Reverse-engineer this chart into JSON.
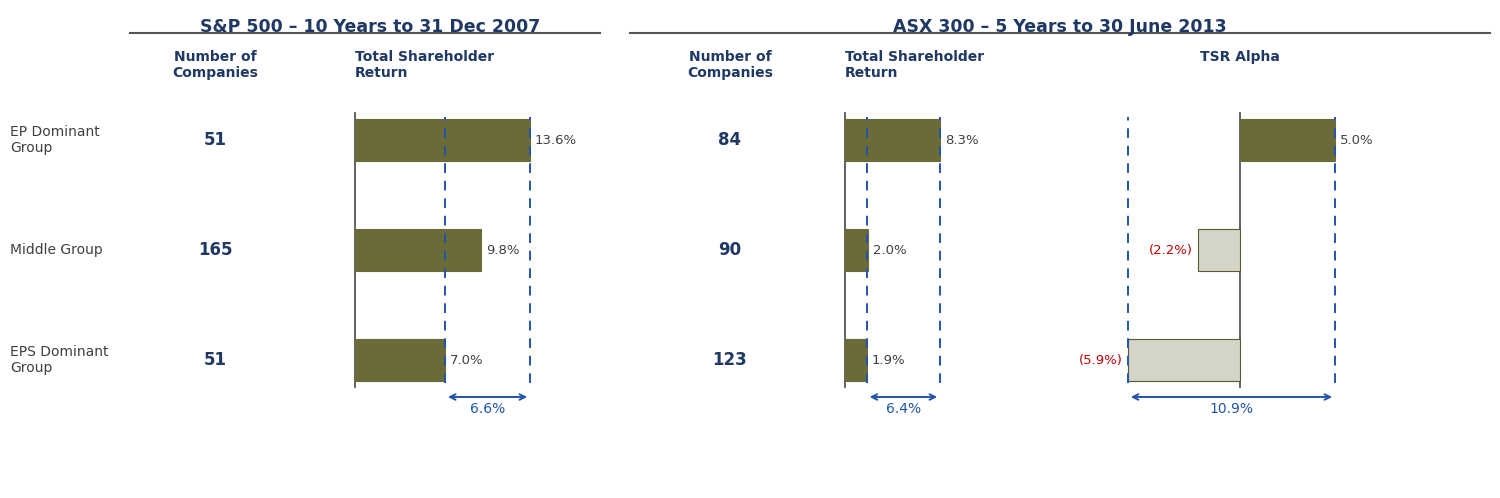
{
  "sp500_title": "S&P 500 – 10 Years to 31 Dec 2007",
  "asx300_title": "ASX 300 – 5 Years to 30 June 2013",
  "row_labels": [
    "EP Dominant\nGroup",
    "Middle Group",
    "EPS Dominant\nGroup"
  ],
  "sp500_companies": [
    "51",
    "165",
    "51"
  ],
  "sp500_tsr": [
    13.6,
    9.8,
    7.0
  ],
  "sp500_tsr_labels": [
    "13.6%",
    "9.8%",
    "7.0%"
  ],
  "sp500_spread": "6.6%",
  "asx300_companies": [
    "84",
    "90",
    "123"
  ],
  "asx300_tsr": [
    8.3,
    2.0,
    1.9
  ],
  "asx300_tsr_labels": [
    "8.3%",
    "2.0%",
    "1.9%"
  ],
  "asx300_spread": "6.4%",
  "asx300_alpha": [
    5.0,
    -2.2,
    -5.9
  ],
  "asx300_alpha_labels": [
    "5.0%",
    "(2.2%)",
    "(5.9%)"
  ],
  "asx300_alpha_spread": "10.9%",
  "bar_color_dark": "#6b6b3a",
  "bar_color_light": "#d4d4c8",
  "bar_edge_dark": "#5a5a30",
  "text_color_blue": "#1f3864",
  "text_color_red": "#c00000",
  "text_color_dark": "#404040",
  "header_color": "#1f3864",
  "background_color": "#ffffff",
  "dashed_color": "#2255aa",
  "axis_line_color": "#555555",
  "rule_color": "#555555"
}
